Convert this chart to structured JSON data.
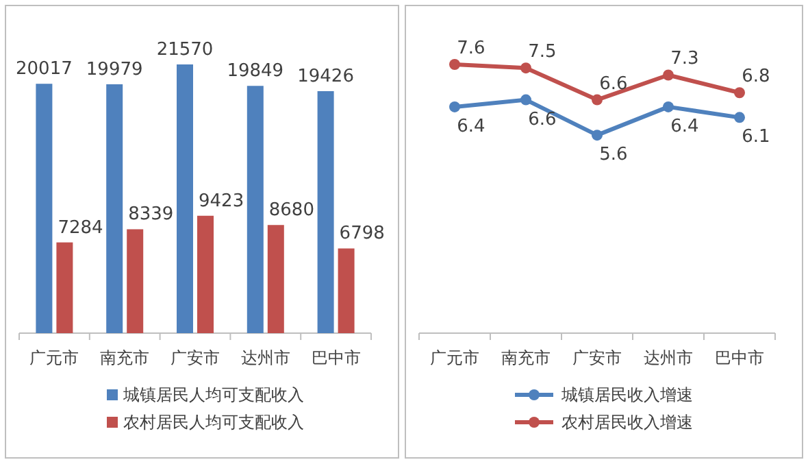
{
  "chart_data": [
    {
      "type": "bar",
      "categories": [
        "广元市",
        "南充市",
        "广安市",
        "达州市",
        "巴中市"
      ],
      "series": [
        {
          "name": "城镇居民人均可支配收入",
          "color": "#4f81bd",
          "values": [
            20017,
            19979,
            21570,
            19849,
            19426
          ]
        },
        {
          "name": "农村居民人均可支配收入",
          "color": "#c0504d",
          "values": [
            7284,
            8339,
            9423,
            8680,
            6798
          ]
        }
      ],
      "data_labels": true,
      "legend": "bottom"
    },
    {
      "type": "line",
      "categories": [
        "广元市",
        "南充市",
        "广安市",
        "达州市",
        "巴中市"
      ],
      "series": [
        {
          "name": "城镇居民收入增速",
          "color": "#4f81bd",
          "values": [
            6.4,
            6.6,
            5.6,
            6.4,
            6.1
          ]
        },
        {
          "name": "农村居民收入增速",
          "color": "#c0504d",
          "values": [
            7.6,
            7.5,
            6.6,
            7.3,
            6.8
          ]
        }
      ],
      "data_labels": true,
      "legend": "bottom",
      "marker": "circle"
    }
  ]
}
